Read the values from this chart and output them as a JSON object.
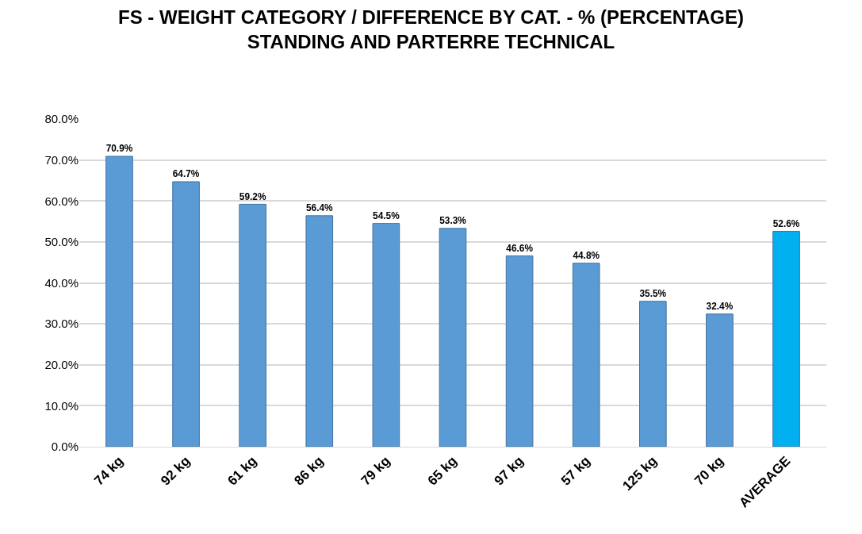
{
  "chart_data": {
    "type": "bar",
    "title": "FS - WEIGHT CATEGORY / DIFFERENCE BY CAT. - % (PERCENTAGE)\nSTANDING AND PARTERRE TECHNICAL",
    "categories": [
      "74 kg",
      "92 kg",
      "61 kg",
      "86 kg",
      "79 kg",
      "65 kg",
      "97 kg",
      "57 kg",
      "125 kg",
      "70 kg",
      "AVERAGE"
    ],
    "values": [
      70.9,
      64.7,
      59.2,
      56.4,
      54.5,
      53.3,
      46.6,
      44.8,
      35.5,
      32.4,
      52.6
    ],
    "value_labels": [
      "70.9%",
      "64.7%",
      "59.2%",
      "56.4%",
      "54.5%",
      "53.3%",
      "46.6%",
      "44.8%",
      "35.5%",
      "32.4%",
      "52.6%"
    ],
    "colors": [
      "#5b9bd5",
      "#5b9bd5",
      "#5b9bd5",
      "#5b9bd5",
      "#5b9bd5",
      "#5b9bd5",
      "#5b9bd5",
      "#5b9bd5",
      "#5b9bd5",
      "#5b9bd5",
      "#00b0f0"
    ],
    "ylim": [
      0,
      80
    ],
    "yticks": [
      {
        "value": 0,
        "label": "0.0%"
      },
      {
        "value": 10,
        "label": "10.0%"
      },
      {
        "value": 20,
        "label": "20.0%"
      },
      {
        "value": 30,
        "label": "30.0%"
      },
      {
        "value": 40,
        "label": "40.0%"
      },
      {
        "value": 50,
        "label": "50.0%"
      },
      {
        "value": 60,
        "label": "60.0%"
      },
      {
        "value": 70,
        "label": "70.0%"
      },
      {
        "value": 80,
        "label": "80.0%"
      }
    ],
    "grid": "y"
  }
}
